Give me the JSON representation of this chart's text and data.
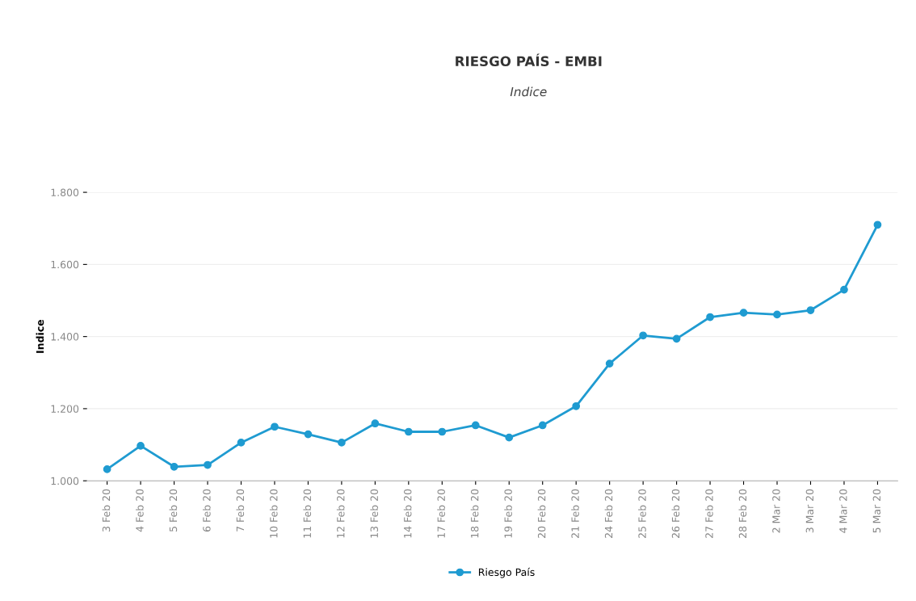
{
  "chart_data": {
    "type": "line",
    "title": "RIESGO PAÍS - EMBI",
    "subtitle": "Indice",
    "ylabel": "Indice",
    "categories": [
      "3 Feb 20",
      "4 Feb 20",
      "5 Feb 20",
      "6 Feb 20",
      "7 Feb 20",
      "10 Feb 20",
      "11 Feb 20",
      "12 Feb 20",
      "13 Feb 20",
      "14 Feb 20",
      "17 Feb 20",
      "18 Feb 20",
      "19 Feb 20",
      "20 Feb 20",
      "21 Feb 20",
      "24 Feb 20",
      "25 Feb 20",
      "26 Feb 20",
      "27 Feb 20",
      "28 Feb 20",
      "2 Mar 20",
      "3 Mar 20",
      "4 Mar 20",
      "5 Mar 20"
    ],
    "series": [
      {
        "name": "Riesgo País",
        "color": "#1f9bd1",
        "values": [
          1032,
          1097,
          1039,
          1044,
          1106,
          1150,
          1129,
          1106,
          1159,
          1136,
          1136,
          1154,
          1120,
          1154,
          1207,
          1325,
          1403,
          1394,
          1454,
          1466,
          1461,
          1473,
          1530,
          1710
        ]
      }
    ],
    "ylim": [
      1000,
      1800
    ],
    "yticks": [
      {
        "value": 1000,
        "label": "1.000"
      },
      {
        "value": 1200,
        "label": "1.200"
      },
      {
        "value": 1400,
        "label": "1.400"
      },
      {
        "value": 1600,
        "label": "1.600"
      },
      {
        "value": 1800,
        "label": "1.800"
      }
    ],
    "grid": "y",
    "legend": "bottom",
    "marker": "circle",
    "line_style": "solid"
  }
}
